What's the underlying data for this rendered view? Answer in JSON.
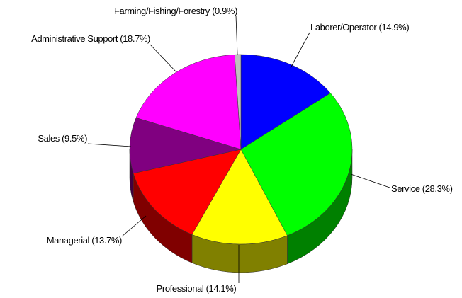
{
  "chart_data": {
    "type": "pie",
    "categories": [
      "Laborer/Operator",
      "Service",
      "Professional",
      "Managerial",
      "Sales",
      "Administrative Support",
      "Farming/Fishing/Forestry"
    ],
    "values": [
      14.9,
      28.3,
      14.1,
      13.7,
      9.5,
      18.7,
      0.9
    ],
    "value_labels": [
      "(14.9%)",
      "(28.3%)",
      "(14.1%)",
      "(13.7%)",
      "(9.5%)",
      "(18.7%)",
      "(0.9%)"
    ],
    "colors": [
      "#0000ff",
      "#00ff00",
      "#ffff00",
      "#ff0000",
      "#800080",
      "#ff00ff",
      "#c0c0c0"
    ],
    "three_d": true
  }
}
